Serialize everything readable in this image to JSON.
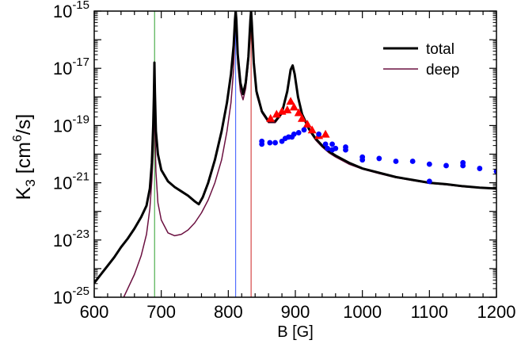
{
  "chart_data": {
    "type": "line",
    "title": "",
    "xlabel": "B [G]",
    "ylabel": "K_3 [cm^6/s]",
    "ylabel_parts": {
      "base": "K",
      "sub": "3",
      "unit_open": " [cm",
      "sup": "6",
      "unit_close": "/s]"
    },
    "xlim": [
      600,
      1200
    ],
    "ylim_log10": [
      -25,
      -15
    ],
    "x_ticks": [
      {
        "value": 600,
        "label": "600"
      },
      {
        "value": 700,
        "label": "700"
      },
      {
        "value": 800,
        "label": "800"
      },
      {
        "value": 900,
        "label": "900"
      },
      {
        "value": 1000,
        "label": "1000"
      },
      {
        "value": 1100,
        "label": "1100"
      },
      {
        "value": 1200,
        "label": "1200"
      }
    ],
    "y_ticks": [
      {
        "exp": -25,
        "base": "10",
        "sup": "-25"
      },
      {
        "exp": -23,
        "base": "10",
        "sup": "-23"
      },
      {
        "exp": -21,
        "base": "10",
        "sup": "-21"
      },
      {
        "exp": -19,
        "base": "10",
        "sup": "-19"
      },
      {
        "exp": -17,
        "base": "10",
        "sup": "-17"
      },
      {
        "exp": -15,
        "base": "10",
        "sup": "-15"
      }
    ],
    "legend": {
      "placement": "top-right",
      "entries": [
        {
          "label": "total",
          "color": "#000000"
        },
        {
          "label": "deep",
          "color": "#6b1040"
        }
      ]
    },
    "vertical_lines": [
      {
        "x": 690,
        "color": "#2ca02c"
      },
      {
        "x": 811,
        "color": "#3355ff"
      },
      {
        "x": 834,
        "color": "#cc2222"
      }
    ],
    "series": [
      {
        "name": "total",
        "color": "#000000",
        "points_log10": [
          [
            600,
            -24.5
          ],
          [
            610,
            -24.2
          ],
          [
            620,
            -23.9
          ],
          [
            630,
            -23.6
          ],
          [
            640,
            -23.25
          ],
          [
            650,
            -22.95
          ],
          [
            660,
            -22.6
          ],
          [
            670,
            -22.2
          ],
          [
            678,
            -21.8
          ],
          [
            683,
            -21.2
          ],
          [
            686,
            -20.3
          ],
          [
            688,
            -19.0
          ],
          [
            689,
            -18.0
          ],
          [
            689.8,
            -16.8
          ],
          [
            690.5,
            -17.8
          ],
          [
            692,
            -19.2
          ],
          [
            695,
            -20.0
          ],
          [
            700,
            -20.55
          ],
          [
            710,
            -20.95
          ],
          [
            720,
            -21.15
          ],
          [
            730,
            -21.3
          ],
          [
            740,
            -21.45
          ],
          [
            750,
            -21.65
          ],
          [
            756,
            -21.75
          ],
          [
            762,
            -21.5
          ],
          [
            770,
            -21.0
          ],
          [
            780,
            -20.2
          ],
          [
            790,
            -19.2
          ],
          [
            798,
            -18.2
          ],
          [
            804,
            -17.2
          ],
          [
            808,
            -16.2
          ],
          [
            810,
            -15.3
          ],
          [
            811,
            -15.0
          ],
          [
            812,
            -15.3
          ],
          [
            814,
            -16.5
          ],
          [
            818,
            -17.5
          ],
          [
            822,
            -17.9
          ],
          [
            826,
            -17.5
          ],
          [
            830,
            -16.6
          ],
          [
            833,
            -15.3
          ],
          [
            834,
            -15.0
          ],
          [
            835,
            -15.4
          ],
          [
            838,
            -16.8
          ],
          [
            842,
            -17.8
          ],
          [
            850,
            -18.5
          ],
          [
            860,
            -18.85
          ],
          [
            870,
            -18.85
          ],
          [
            880,
            -18.55
          ],
          [
            888,
            -17.8
          ],
          [
            893,
            -17.05
          ],
          [
            896,
            -16.9
          ],
          [
            899,
            -17.2
          ],
          [
            904,
            -18.0
          ],
          [
            910,
            -18.6
          ],
          [
            920,
            -19.1
          ],
          [
            930,
            -19.45
          ],
          [
            940,
            -19.7
          ],
          [
            950,
            -19.9
          ],
          [
            960,
            -20.05
          ],
          [
            980,
            -20.3
          ],
          [
            1000,
            -20.5
          ],
          [
            1025,
            -20.65
          ],
          [
            1050,
            -20.8
          ],
          [
            1075,
            -20.9
          ],
          [
            1100,
            -21.0
          ],
          [
            1125,
            -21.05
          ],
          [
            1150,
            -21.12
          ],
          [
            1175,
            -21.17
          ],
          [
            1200,
            -21.2
          ]
        ]
      },
      {
        "name": "deep",
        "color": "#6b1040",
        "points_log10": [
          [
            644,
            -25.0
          ],
          [
            650,
            -24.7
          ],
          [
            660,
            -24.2
          ],
          [
            670,
            -23.55
          ],
          [
            678,
            -22.8
          ],
          [
            683,
            -21.9
          ],
          [
            686,
            -20.9
          ],
          [
            688,
            -19.9
          ],
          [
            689,
            -19.0
          ],
          [
            689.8,
            -18.2
          ],
          [
            690.5,
            -19.0
          ],
          [
            692,
            -20.6
          ],
          [
            695,
            -21.7
          ],
          [
            700,
            -22.3
          ],
          [
            710,
            -22.75
          ],
          [
            720,
            -22.85
          ],
          [
            730,
            -22.8
          ],
          [
            740,
            -22.65
          ],
          [
            750,
            -22.4
          ],
          [
            760,
            -22.05
          ],
          [
            770,
            -21.6
          ],
          [
            780,
            -21.0
          ],
          [
            790,
            -20.2
          ],
          [
            798,
            -19.2
          ],
          [
            804,
            -18.2
          ],
          [
            808,
            -17.0
          ],
          [
            810,
            -15.6
          ],
          [
            811,
            -15.1
          ],
          [
            812,
            -15.5
          ],
          [
            814,
            -16.8
          ],
          [
            818,
            -17.8
          ],
          [
            822,
            -18.1
          ],
          [
            826,
            -17.7
          ],
          [
            830,
            -16.8
          ],
          [
            833,
            -15.4
          ],
          [
            834,
            -15.05
          ],
          [
            835,
            -15.5
          ],
          [
            838,
            -16.9
          ],
          [
            842,
            -17.9
          ],
          [
            850,
            -18.55
          ],
          [
            860,
            -18.9
          ],
          [
            870,
            -18.9
          ],
          [
            880,
            -18.6
          ],
          [
            888,
            -17.85
          ],
          [
            893,
            -17.1
          ],
          [
            896,
            -16.95
          ],
          [
            899,
            -17.25
          ],
          [
            904,
            -18.05
          ],
          [
            910,
            -18.65
          ],
          [
            920,
            -19.15
          ],
          [
            930,
            -19.5
          ],
          [
            940,
            -19.75
          ],
          [
            950,
            -19.95
          ],
          [
            960,
            -20.1
          ],
          [
            980,
            -20.35
          ],
          [
            1000,
            -20.52
          ],
          [
            1025,
            -20.68
          ],
          [
            1050,
            -20.82
          ],
          [
            1075,
            -20.92
          ],
          [
            1100,
            -21.02
          ],
          [
            1125,
            -21.07
          ],
          [
            1150,
            -21.14
          ],
          [
            1175,
            -21.18
          ],
          [
            1200,
            -21.22
          ]
        ]
      }
    ],
    "scatter_series": [
      {
        "name": "triangles",
        "marker": "triangle",
        "color": "#ff0000",
        "points_log10": [
          [
            863,
            -18.75
          ],
          [
            872,
            -18.6
          ],
          [
            880,
            -18.5
          ],
          [
            888,
            -18.45
          ],
          [
            893,
            -18.15
          ],
          [
            898,
            -18.35
          ],
          [
            905,
            -18.55
          ],
          [
            910,
            -18.75
          ],
          [
            918,
            -18.95
          ],
          [
            925,
            -19.15
          ],
          [
            935,
            -19.35
          ],
          [
            945,
            -19.3
          ]
        ]
      },
      {
        "name": "circles",
        "marker": "circle",
        "color": "#0000ff",
        "points_log10": [
          [
            850,
            -19.55
          ],
          [
            850,
            -19.65
          ],
          [
            862,
            -19.6
          ],
          [
            870,
            -19.6
          ],
          [
            880,
            -19.55
          ],
          [
            885,
            -19.45
          ],
          [
            890,
            -19.4
          ],
          [
            895,
            -19.4
          ],
          [
            898,
            -19.3
          ],
          [
            905,
            -19.25
          ],
          [
            913,
            -19.15
          ],
          [
            935,
            -19.3
          ],
          [
            945,
            -19.65
          ],
          [
            948,
            -19.8
          ],
          [
            955,
            -19.65
          ],
          [
            955,
            -19.85
          ],
          [
            960,
            -19.8
          ],
          [
            975,
            -19.85
          ],
          [
            975,
            -19.75
          ],
          [
            1000,
            -20.1
          ],
          [
            1000,
            -20.2
          ],
          [
            1025,
            -20.15
          ],
          [
            1050,
            -20.25
          ],
          [
            1075,
            -20.25
          ],
          [
            1100,
            -20.35
          ],
          [
            1100,
            -20.95
          ],
          [
            1125,
            -20.4
          ],
          [
            1150,
            -20.4
          ],
          [
            1150,
            -20.3
          ],
          [
            1175,
            -20.5
          ],
          [
            1200,
            -20.6
          ]
        ]
      }
    ]
  }
}
